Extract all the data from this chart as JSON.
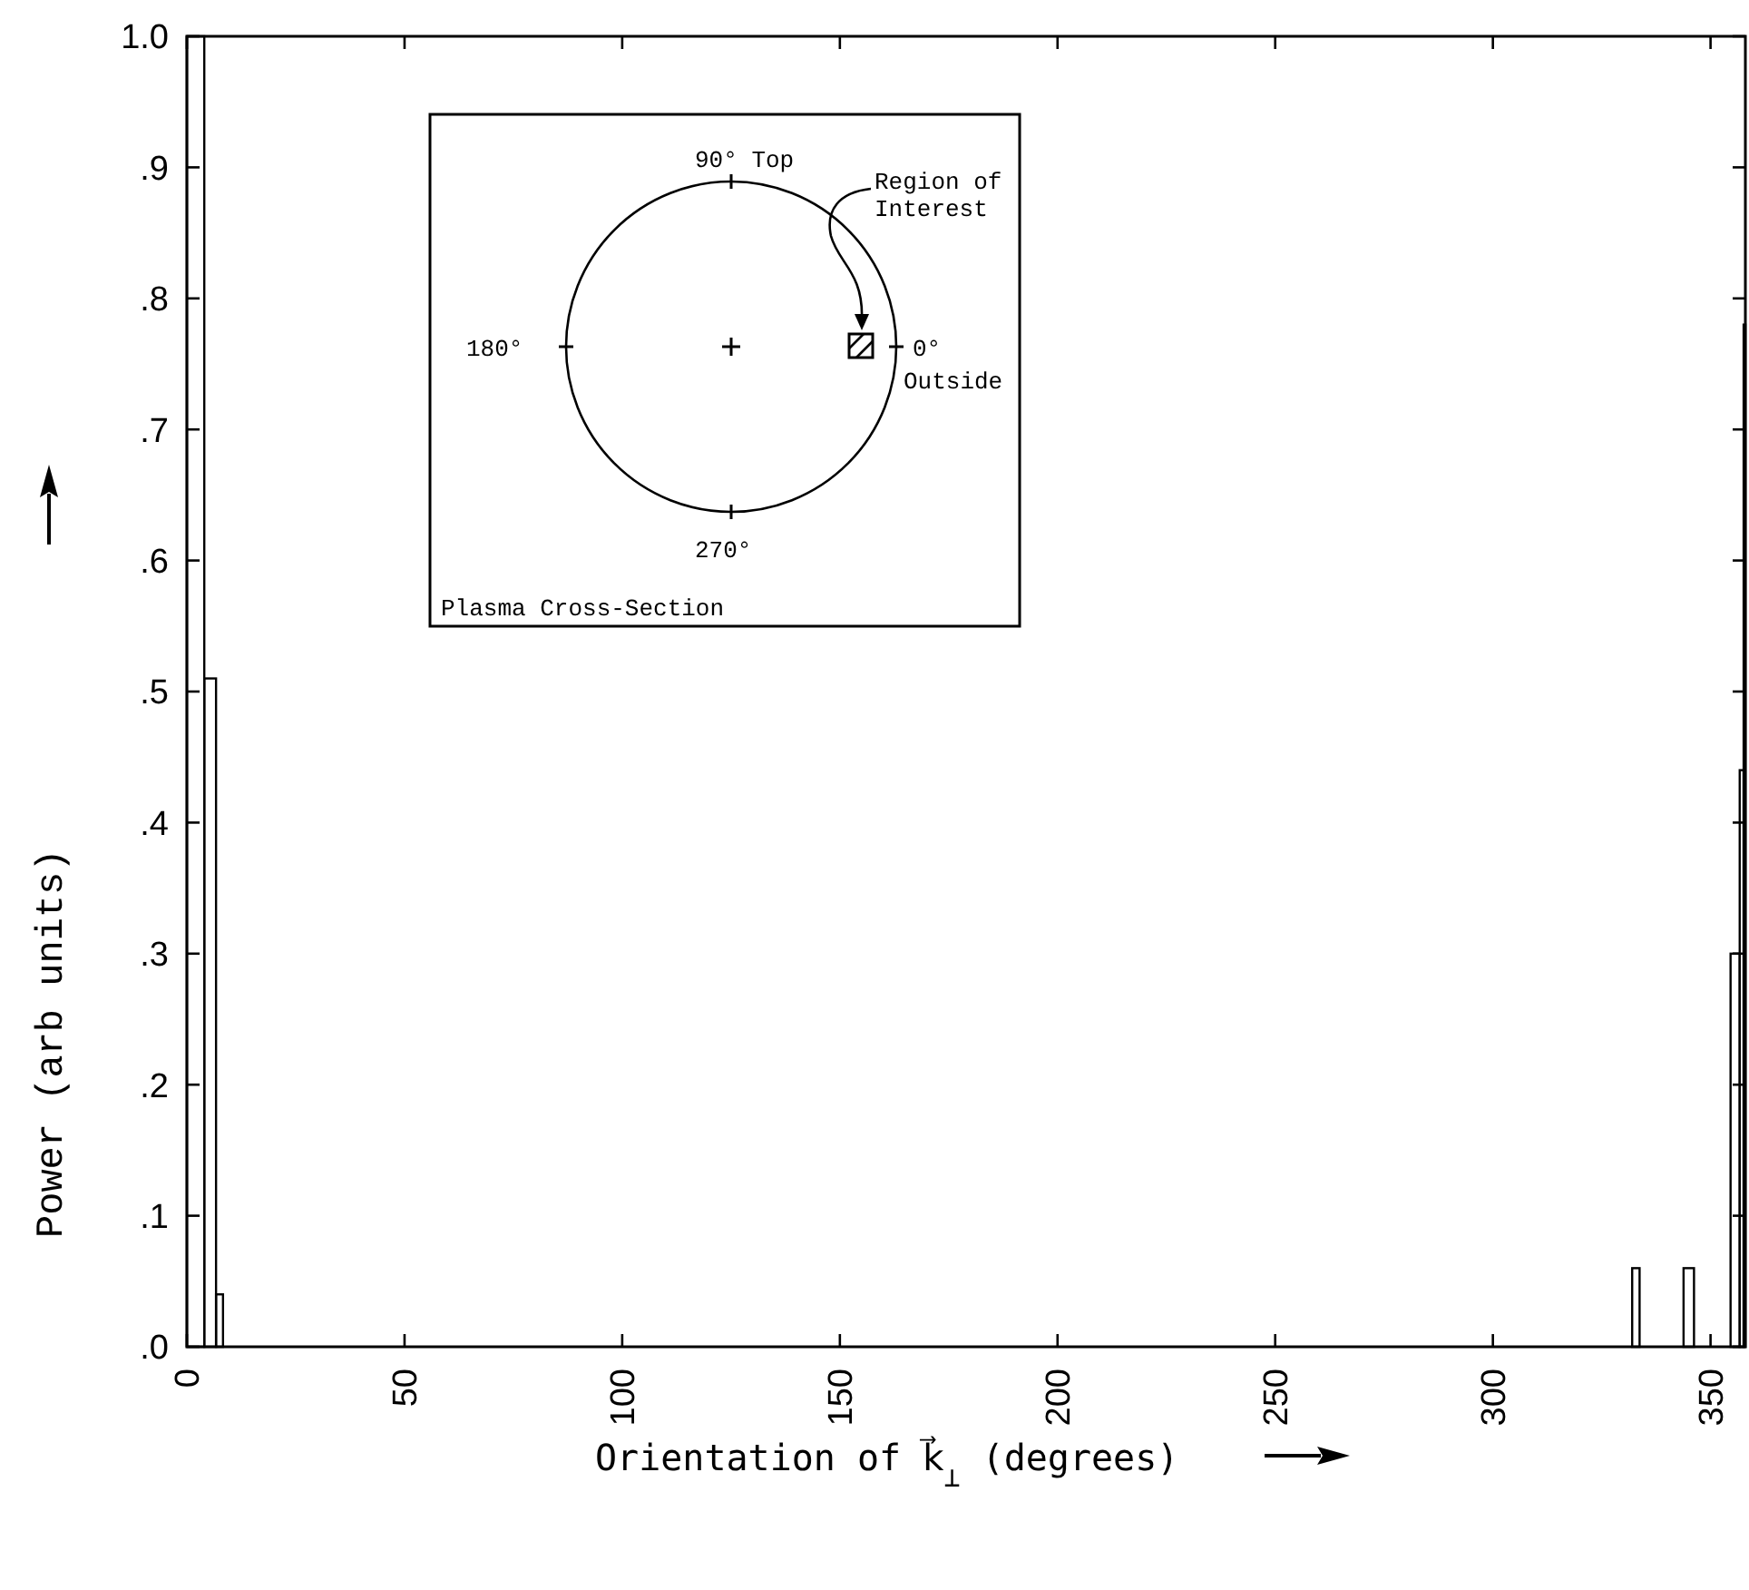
{
  "chart_data": {
    "type": "histogram",
    "xlabel": "Orientation of k⃗$_{⊥}$ (degrees)",
    "ylabel": "Power (arb units)",
    "bins": [
      0,
      4,
      6.7,
      8.3,
      332,
      333.7,
      343.8,
      346.2,
      354.6,
      356.7,
      357.6,
      358
    ],
    "values": [
      1.0,
      0.51,
      0.04,
      0,
      0.06,
      0,
      0.06,
      0,
      0.3,
      0.44,
      0.78
    ],
    "color": "#000000",
    "xlim": [
      0,
      358
    ],
    "xticks": [
      0,
      50,
      100,
      150,
      200,
      250,
      300,
      350
    ],
    "ylim": [
      0,
      1.0
    ],
    "yticks": [
      {
        "value": 0,
        "label": ".0"
      },
      {
        "value": 0.1,
        "label": ".1"
      },
      {
        "value": 0.2,
        "label": ".2"
      },
      {
        "value": 0.3,
        "label": ".3"
      },
      {
        "value": 0.4,
        "label": ".4"
      },
      {
        "value": 0.5,
        "label": ".5"
      },
      {
        "value": 0.6,
        "label": ".6"
      },
      {
        "value": 0.7,
        "label": ".7"
      },
      {
        "value": 0.8,
        "label": ".8"
      },
      {
        "value": 0.9,
        "label": ".9"
      },
      {
        "value": 1.0,
        "label": "1.0"
      }
    ],
    "grid": false,
    "annotations": [
      "90° Top",
      "Region of Interest",
      "180°",
      "0°",
      "Outside",
      "270°",
      "Plasma Cross-Section"
    ]
  }
}
